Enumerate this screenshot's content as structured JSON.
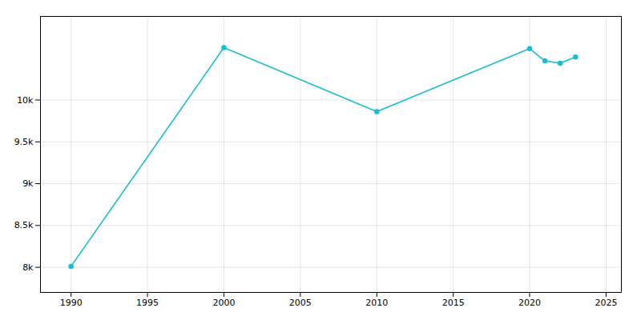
{
  "chart_data": {
    "type": "line",
    "x": [
      1990,
      2000,
      2010,
      2020,
      2021,
      2022,
      2023
    ],
    "values": [
      8012,
      10627,
      9862,
      10614,
      10468,
      10440,
      10514
    ],
    "color": "#17becf",
    "marker": "circle",
    "xlim": [
      1988,
      2026
    ],
    "ylim": [
      7700,
      11000
    ],
    "xticks": [
      1990,
      1995,
      2000,
      2005,
      2010,
      2015,
      2020,
      2025
    ],
    "yticks": [
      {
        "value": 8000,
        "label": "8k"
      },
      {
        "value": 8500,
        "label": "8.5k"
      },
      {
        "value": 9000,
        "label": "9k"
      },
      {
        "value": 9500,
        "label": "9.5k"
      },
      {
        "value": 10000,
        "label": "10k"
      }
    ],
    "grid": true
  }
}
